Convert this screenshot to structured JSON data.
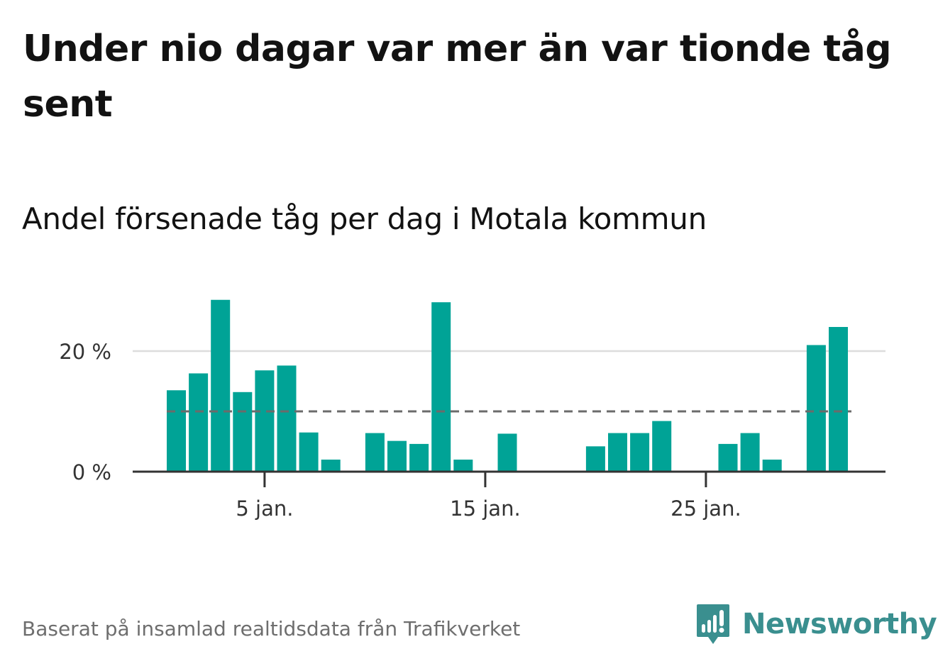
{
  "title": "Under nio dagar var mer än var tionde tåg sent",
  "subtitle": "Andel försenade tåg per dag i Motala kommun",
  "footer": {
    "source": "Baserat på insamlad realtidsdata från Trafikverket",
    "brand": "Newsworthy"
  },
  "colors": {
    "bar": "#00a396",
    "reference_line": "#6b6b6b",
    "grid": "#dddddd",
    "axis": "#333333",
    "brand": "#3a8f8f"
  },
  "chart_data": {
    "type": "bar",
    "x_unit": "day of January",
    "x": [
      1,
      2,
      3,
      4,
      5,
      6,
      7,
      8,
      9,
      10,
      11,
      12,
      13,
      14,
      15,
      16,
      17,
      18,
      19,
      20,
      21,
      22,
      23,
      24,
      25,
      26,
      27,
      28,
      29,
      30,
      31
    ],
    "values": [
      13.5,
      16.3,
      28.5,
      13.2,
      16.8,
      17.6,
      6.5,
      2.0,
      0,
      6.4,
      5.1,
      4.6,
      28.1,
      2.0,
      0,
      6.3,
      0,
      0,
      0,
      4.2,
      6.4,
      6.4,
      8.4,
      0,
      0,
      4.6,
      6.4,
      2.0,
      0,
      21.0,
      24.0
    ],
    "reference_line": 10,
    "reference_line_style": "dashed",
    "ylim": [
      0,
      30
    ],
    "yticks": [
      0,
      20
    ],
    "ytick_labels": [
      "0 %",
      "20 %"
    ],
    "xticks": [
      5,
      15,
      25
    ],
    "xtick_labels": [
      "5 jan.",
      "15 jan.",
      "25 jan."
    ],
    "grid": "horizontal",
    "legend": "none"
  }
}
